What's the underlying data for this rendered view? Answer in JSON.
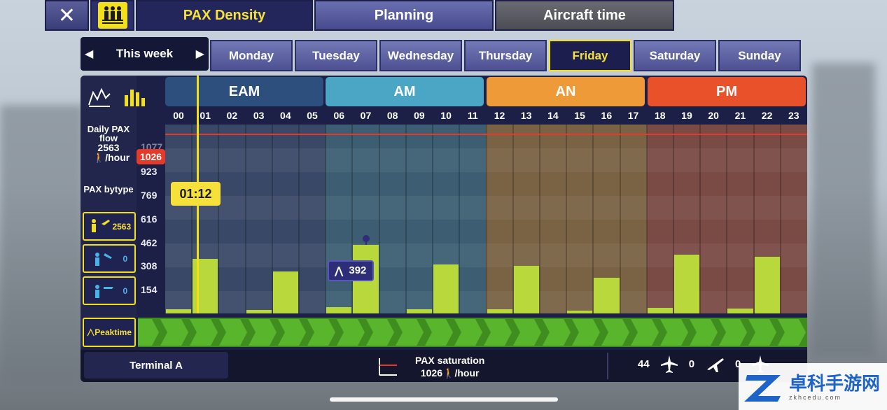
{
  "header": {
    "close_icon": "close-icon",
    "pax_icon": "crowd-icon",
    "tabs": [
      {
        "label": "PAX Density",
        "active": true
      },
      {
        "label": "Planning",
        "active": false
      },
      {
        "label": "Aircraft time",
        "active": false
      }
    ]
  },
  "week": {
    "label": "This week"
  },
  "days": [
    {
      "label": "Monday"
    },
    {
      "label": "Tuesday"
    },
    {
      "label": "Wednesday"
    },
    {
      "label": "Thursday"
    },
    {
      "label": "Friday"
    },
    {
      "label": "Saturday"
    },
    {
      "label": "Sunday"
    }
  ],
  "active_day": "Friday",
  "left_panel": {
    "daily_flow_label": "Daily PAX flow",
    "daily_flow_value": "2563",
    "per_hour": "/hour",
    "bytype_label": "PAX bytype",
    "types": [
      {
        "icon": "departures-icon",
        "value": "2563"
      },
      {
        "icon": "arrivals-icon",
        "value": "0"
      },
      {
        "icon": "transfer-icon",
        "value": "0"
      }
    ],
    "peak_label": "Peaktime"
  },
  "periods": [
    {
      "label": "EAM",
      "color": "#2c4f7e"
    },
    {
      "label": "AM",
      "color": "#4aa6c4"
    },
    {
      "label": "AN",
      "color": "#ee9a38"
    },
    {
      "label": "PM",
      "color": "#e9512a"
    }
  ],
  "hours": [
    "00",
    "01",
    "02",
    "03",
    "04",
    "05",
    "06",
    "07",
    "08",
    "09",
    "10",
    "11",
    "12",
    "13",
    "14",
    "15",
    "16",
    "17",
    "18",
    "19",
    "20",
    "21",
    "22",
    "23"
  ],
  "y_ticks": [
    "154",
    "308",
    "462",
    "616",
    "769",
    "923"
  ],
  "partial_tick": "1077",
  "saturation": {
    "value": "1026",
    "label": "PAX saturation",
    "unit": "/hour"
  },
  "current_time": "01:12",
  "tooltip": {
    "value": "392"
  },
  "chart_data": {
    "type": "bar",
    "categories": [
      "00",
      "01",
      "02",
      "03",
      "04",
      "05",
      "06",
      "07",
      "08",
      "09",
      "10",
      "11",
      "12",
      "13",
      "14",
      "15",
      "16",
      "17",
      "18",
      "19",
      "20",
      "21",
      "22",
      "23"
    ],
    "values": [
      25,
      310,
      0,
      20,
      240,
      0,
      35,
      392,
      0,
      25,
      280,
      0,
      25,
      270,
      0,
      18,
      205,
      0,
      30,
      335,
      0,
      28,
      325,
      0
    ],
    "ylim": [
      0,
      1077
    ],
    "saturation_line": 1026
  },
  "bottom": {
    "terminal": "Terminal A",
    "counts": [
      {
        "value": "44",
        "icon": "plane-icon"
      },
      {
        "value": "0",
        "icon": "departing-plane-icon"
      },
      {
        "value": "0",
        "icon": "landing-plane-icon"
      }
    ]
  },
  "watermark": {
    "title": "卓科手游网",
    "sub": "zkhcedu.com"
  },
  "colors": {
    "accent": "#f2e01c",
    "bar": "#b8d83c",
    "saturation": "#e53a2a",
    "peak": "#3f8d1f"
  }
}
